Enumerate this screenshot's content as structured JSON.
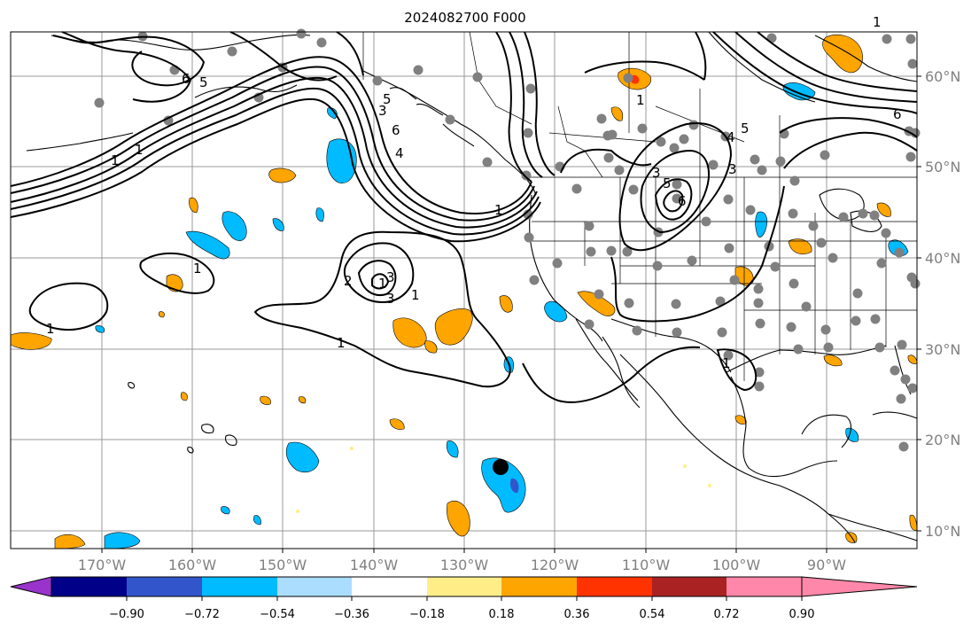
{
  "title": "2024082700 F000",
  "lon_ticks": [
    "170°W",
    "160°W",
    "150°W",
    "140°W",
    "130°W",
    "120°W",
    "110°W",
    "100°W",
    "90°W"
  ],
  "lat_ticks": [
    "60°N",
    "50°N",
    "40°N",
    "30°N",
    "20°N",
    "10°N"
  ],
  "colorbar": {
    "labels": [
      "−0.90",
      "−0.72",
      "−0.54",
      "−0.36",
      "−0.18",
      "0.18",
      "0.36",
      "0.54",
      "0.72",
      "0.90"
    ],
    "colors": [
      "#9933cc",
      "#000088",
      "#3355cc",
      "#00bbff",
      "#aaddff",
      "#ffffff",
      "#ffee88",
      "#ffa500",
      "#ff3300",
      "#aa2222",
      "#ff88aa"
    ]
  },
  "contour_labels": [
    "6",
    "5",
    "1",
    "1",
    "3",
    "5",
    "6",
    "4",
    "1",
    "3",
    "2",
    "1",
    "1",
    "3",
    "1",
    "1",
    "1",
    "3",
    "5",
    "6",
    "1",
    "4",
    "5",
    "3",
    "1",
    "1",
    "6"
  ],
  "colors": {
    "land_outline": "#000000",
    "grid": "#999999",
    "station": "#808080",
    "positive": "#ffa500",
    "negative": "#00bbff"
  },
  "icons": [
    "station-marker",
    "storm-center-marker"
  ]
}
